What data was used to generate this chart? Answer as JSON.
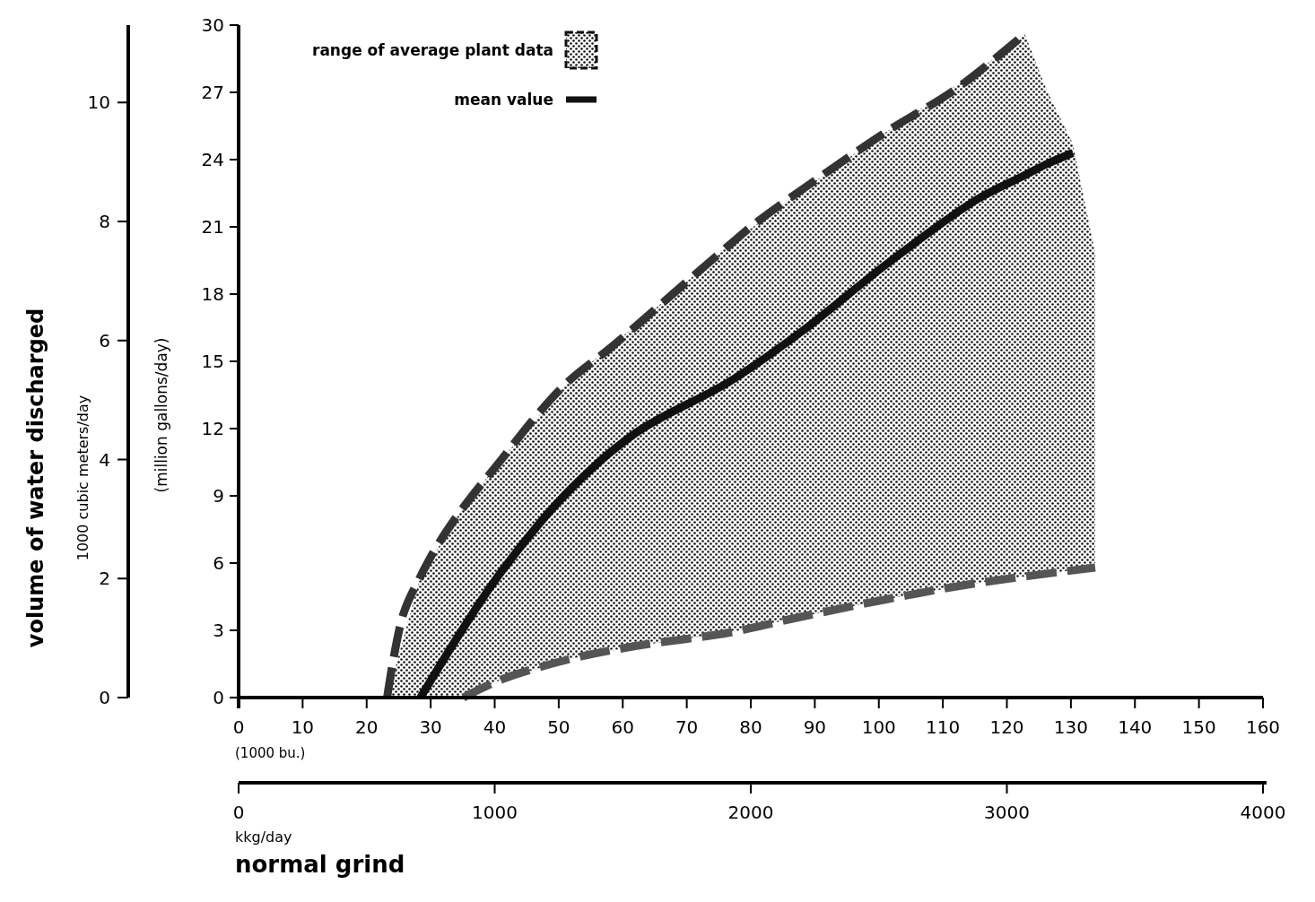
{
  "chart_data": {
    "type": "line",
    "xlabel": "(1000 bu.)",
    "ylabel": "(million gallons/day)",
    "y2label": "1000 cubic meters/day",
    "x2label": "kkg/day",
    "annotations": [
      "volume of water discharged",
      "normal grind",
      "range of average plant data"
    ],
    "xlim": [
      0,
      160
    ],
    "xticks": [
      0,
      10,
      20,
      30,
      40,
      50,
      60,
      70,
      80,
      90,
      100,
      110,
      120,
      130,
      140,
      150,
      160
    ],
    "ylim": [
      0,
      30
    ],
    "yticks": [
      0,
      3,
      6,
      9,
      12,
      15,
      18,
      21,
      24,
      27,
      30
    ],
    "y2lim": [
      0,
      11.3
    ],
    "y2ticks": [
      0,
      2,
      4,
      6,
      8,
      10
    ],
    "x2lim": [
      0,
      4000
    ],
    "x2ticks": [
      0,
      1000,
      2000,
      3000,
      4000
    ],
    "legend": "top left",
    "series": [
      {
        "color": "#333333",
        "line_style": "dashed",
        "x": [
          23.2,
          25.7,
          28.4,
          31.3,
          35.4,
          41,
          46.6,
          51.5,
          58.5,
          69,
          76.7,
          80.9,
          91.2,
          101.5,
          111.8,
          122.8
        ],
        "values": [
          0,
          3.7,
          5.4,
          6.9,
          8.6,
          10.6,
          12.6,
          14.1,
          15.7,
          18.3,
          20.2,
          21.2,
          23.3,
          25.3,
          27.1,
          29.6
        ]
      },
      {
        "color": "#555555",
        "line_style": "dashed",
        "x": [
          35.1,
          41,
          51.5,
          62,
          76.7,
          87.8,
          101.5,
          115.2,
          133.8
        ],
        "values": [
          0,
          0.8,
          1.7,
          2.3,
          2.9,
          3.6,
          4.4,
          5.1,
          5.8
        ]
      },
      {
        "name": "mean value",
        "color": "#111111",
        "line_style": "solid",
        "x": [
          23.2,
          28.4,
          35.1,
          41,
          51.5,
          62,
          76.7,
          87.8,
          101.5,
          115.2,
          122.8,
          126.2,
          130.3,
          133.8
        ],
        "values": [
          null,
          0,
          3.1,
          5.6,
          9.2,
          11.8,
          14.1,
          16.3,
          19.4,
          22.2,
          23.3,
          23.8,
          24.3,
          null
        ],
        "upper": [
          0,
          5.4,
          8.5,
          10.6,
          14.1,
          16.6,
          20.2,
          22.6,
          25.3,
          27.9,
          29.6,
          27.1,
          24.7,
          19.8
        ],
        "lower": [
          0,
          0,
          0,
          0.8,
          1.7,
          2.3,
          2.9,
          3.6,
          4.4,
          5.1,
          5.4,
          5.5,
          5.7,
          5.8
        ]
      }
    ]
  }
}
